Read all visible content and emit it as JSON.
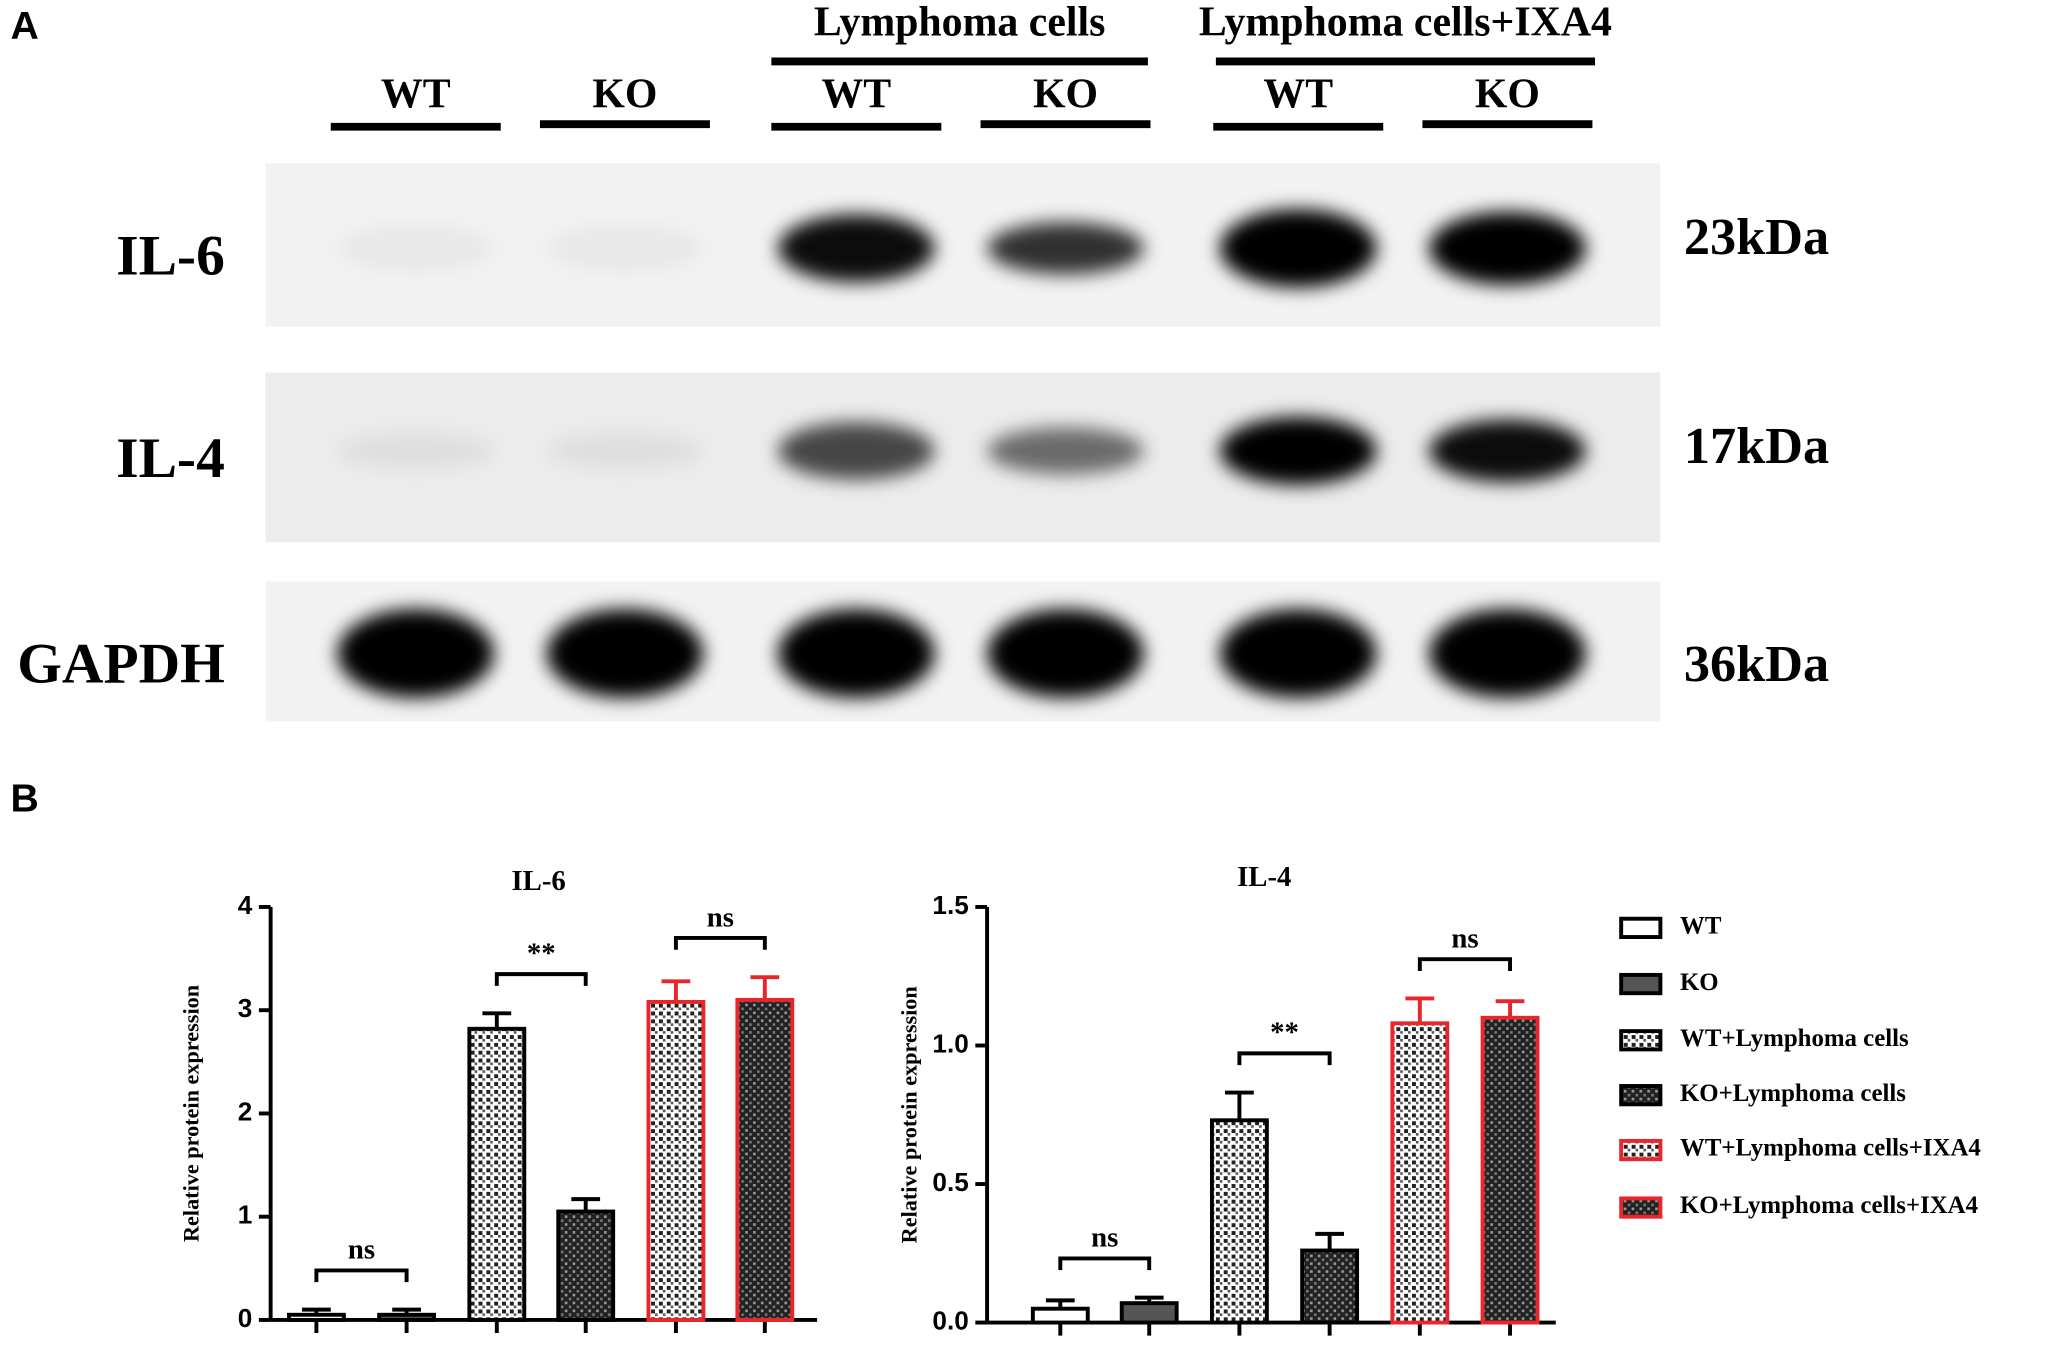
{
  "panels": [
    "A",
    "B"
  ],
  "blot": {
    "groups": [
      "Lymphoma cells",
      "Lymphoma cells+IXA4"
    ],
    "lanes": [
      "WT",
      "KO",
      "WT",
      "KO",
      "WT",
      "KO"
    ],
    "rows": [
      {
        "label": "IL-6",
        "size": "23kDa"
      },
      {
        "label": "IL-4",
        "size": "17kDa"
      },
      {
        "label": "GAPDH",
        "size": "36kDa"
      }
    ]
  },
  "legend": [
    {
      "name": "WT",
      "color": "#ffffff",
      "edge": "#000000",
      "hatch": false
    },
    {
      "name": "KO",
      "color": "#555555",
      "edge": "#000000",
      "hatch": false
    },
    {
      "name": "WT+Lymphoma cells",
      "color": "#ffffff",
      "edge": "#000000",
      "hatch": true
    },
    {
      "name": "KO+Lymphoma cells",
      "color": "#333333",
      "edge": "#000000",
      "hatch": true
    },
    {
      "name": "WT+Lymphoma cells+IXA4",
      "color": "#ffffff",
      "edge": "#e8262b",
      "hatch": true
    },
    {
      "name": "KO+Lymphoma cells+IXA4",
      "color": "#333333",
      "edge": "#e8262b",
      "hatch": true
    }
  ],
  "chart_data": [
    {
      "type": "bar",
      "title": "IL-6",
      "y_label": "Relative protein expression",
      "categories": [
        null,
        null,
        null,
        null,
        null,
        null
      ],
      "values": [
        0.05,
        0.05,
        2.82,
        1.05,
        3.08,
        3.1
      ],
      "errors": [
        0.05,
        0.05,
        0.15,
        0.12,
        0.2,
        0.22
      ],
      "annotations": [
        "ns",
        "**",
        "ns"
      ],
      "ylim": [
        0,
        4
      ],
      "yticks": [
        0,
        1,
        2,
        3,
        4
      ]
    },
    {
      "type": "bar",
      "title": "IL-4",
      "y_label": "Relative protein expression",
      "categories": [
        null,
        null,
        null,
        null,
        null,
        null
      ],
      "values": [
        0.05,
        0.07,
        0.73,
        0.26,
        1.08,
        1.1
      ],
      "errors": [
        0.03,
        0.02,
        0.1,
        0.06,
        0.09,
        0.06
      ],
      "annotations": [
        "ns",
        "**",
        "ns"
      ],
      "ylim": [
        0,
        1.5
      ],
      "yticks": [
        {
          "value": 0,
          "label": "0.0"
        },
        0.5,
        {
          "value": 1,
          "label": "1.0"
        },
        1.5
      ]
    }
  ]
}
